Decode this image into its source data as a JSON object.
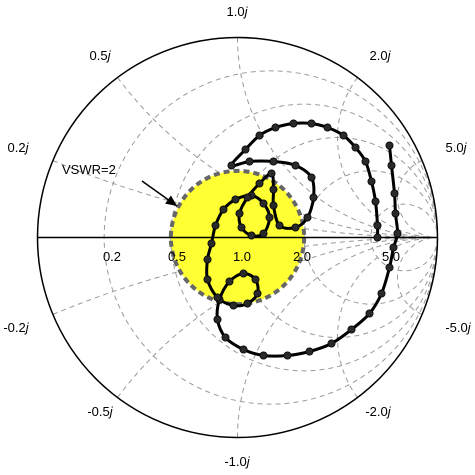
{
  "chart_data": {
    "type": "scatter",
    "chart_kind": "smith-chart",
    "title": "",
    "resistance_circles": [
      0.2,
      0.5,
      1.0,
      2.0,
      5.0
    ],
    "reactance_arcs": [
      0.2,
      0.5,
      1.0,
      2.0,
      5.0
    ],
    "resistance_tick_labels": [
      {
        "r": 0.2,
        "text": "0.2"
      },
      {
        "r": 0.5,
        "text": "0.5"
      },
      {
        "r": 1.0,
        "text": "1.0"
      },
      {
        "r": 2.0,
        "text": "2.0"
      },
      {
        "r": 5.0,
        "text": "5.0"
      }
    ],
    "reactance_tick_labels": [
      {
        "x": 1.0,
        "text": "1.0",
        "suffix": "j"
      },
      {
        "x": 0.5,
        "text": "0.5",
        "suffix": "j"
      },
      {
        "x": 2.0,
        "text": "2.0",
        "suffix": "j"
      },
      {
        "x": 0.2,
        "text": "0.2",
        "suffix": "j"
      },
      {
        "x": 5.0,
        "text": "5.0",
        "suffix": "j"
      },
      {
        "x": -0.2,
        "text": "-0.2",
        "suffix": "j"
      },
      {
        "x": -5.0,
        "text": "-5.0",
        "suffix": "j"
      },
      {
        "x": -0.5,
        "text": "-0.5",
        "suffix": "j"
      },
      {
        "x": -2.0,
        "text": "-2.0",
        "suffix": "j"
      },
      {
        "x": -1.0,
        "text": "-1.0",
        "suffix": "j"
      }
    ],
    "vswr_circle": {
      "vswr": 2,
      "gamma_radius": 0.3333,
      "label": "VSWR=2",
      "fill": "#ffff33",
      "edge": "#666666"
    },
    "trace_color": "#000000",
    "trace_points_gamma": [
      [
        0.76,
        0.46
      ],
      [
        0.77,
        0.36
      ],
      [
        0.785,
        0.22
      ],
      [
        0.79,
        0.12
      ],
      [
        0.8,
        0.02
      ],
      [
        0.78,
        -0.05
      ],
      [
        0.76,
        -0.15
      ],
      [
        0.72,
        -0.28
      ],
      [
        0.66,
        -0.38
      ],
      [
        0.57,
        -0.46
      ],
      [
        0.47,
        -0.53
      ],
      [
        0.36,
        -0.57
      ],
      [
        0.25,
        -0.59
      ],
      [
        0.13,
        -0.59
      ],
      [
        0.03,
        -0.56
      ],
      [
        -0.06,
        -0.5
      ],
      [
        -0.1,
        -0.41
      ],
      [
        -0.09,
        -0.31
      ],
      [
        -0.04,
        -0.22
      ],
      [
        0.03,
        -0.18
      ],
      [
        0.09,
        -0.21
      ],
      [
        0.1,
        -0.28
      ],
      [
        0.05,
        -0.33
      ],
      [
        -0.02,
        -0.34
      ],
      [
        -0.1,
        -0.3
      ],
      [
        -0.15,
        -0.21
      ],
      [
        -0.15,
        -0.11
      ],
      [
        -0.13,
        -0.03
      ],
      [
        -0.11,
        0.06
      ],
      [
        -0.07,
        0.14
      ],
      [
        -0.01,
        0.19
      ],
      [
        0.07,
        0.21
      ],
      [
        0.13,
        0.17
      ],
      [
        0.16,
        0.1
      ],
      [
        0.13,
        0.02
      ],
      [
        0.07,
        0.01
      ],
      [
        0.02,
        0.05
      ],
      [
        0.01,
        0.12
      ],
      [
        0.05,
        0.2
      ],
      [
        0.11,
        0.27
      ],
      [
        0.17,
        0.32
      ],
      [
        0.18,
        0.24
      ],
      [
        0.18,
        0.16
      ],
      [
        0.21,
        0.06
      ],
      [
        0.29,
        0.05
      ],
      [
        0.35,
        0.1
      ],
      [
        0.38,
        0.2
      ],
      [
        0.37,
        0.3
      ],
      [
        0.29,
        0.36
      ],
      [
        0.18,
        0.38
      ],
      [
        0.06,
        0.38
      ],
      [
        -0.03,
        0.36
      ],
      [
        0.04,
        0.44
      ],
      [
        0.11,
        0.51
      ],
      [
        0.19,
        0.55
      ],
      [
        0.28,
        0.57
      ],
      [
        0.37,
        0.57
      ],
      [
        0.45,
        0.55
      ],
      [
        0.53,
        0.51
      ],
      [
        0.59,
        0.45
      ],
      [
        0.64,
        0.38
      ],
      [
        0.67,
        0.28
      ],
      [
        0.69,
        0.18
      ],
      [
        0.7,
        0.06
      ],
      [
        0.7,
        0.0
      ]
    ]
  }
}
